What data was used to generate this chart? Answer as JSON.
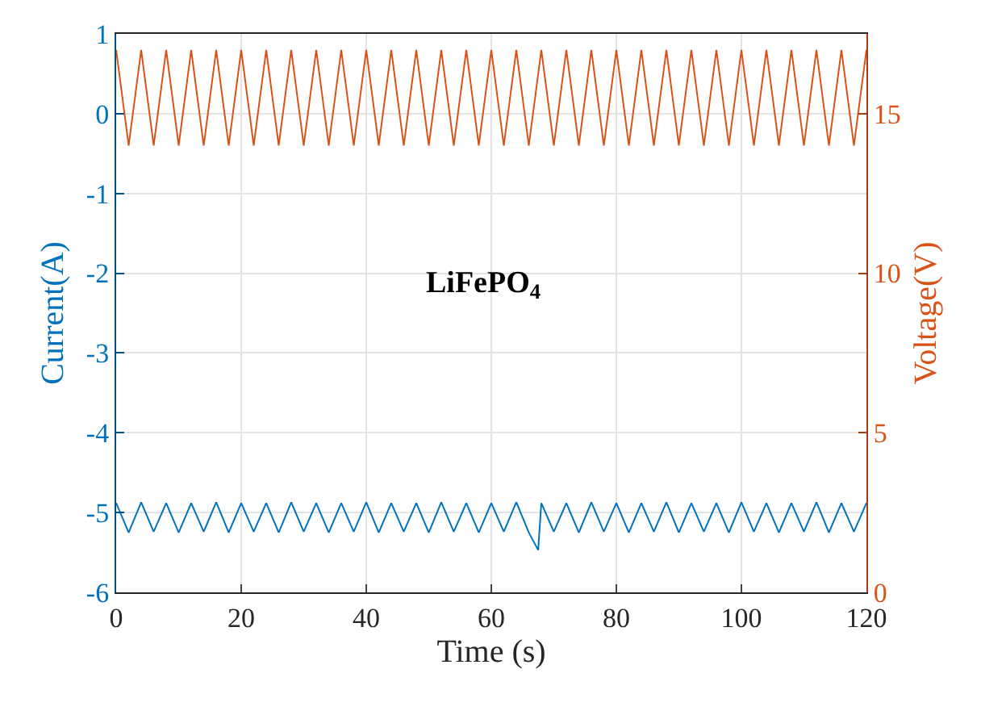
{
  "chart_data": {
    "type": "line",
    "xlabel": "Time (s)",
    "ylabel": "Current(A)",
    "y2label": "Voltage(V)",
    "annotations": [
      "LiFePO$_{4}$"
    ],
    "xlim": [
      0,
      120
    ],
    "xticks": [
      0,
      20,
      40,
      60,
      80,
      100,
      120
    ],
    "ylim": [
      -6,
      1
    ],
    "yticks": [
      -6,
      -5,
      -4,
      -3,
      -2,
      -1,
      0,
      1
    ],
    "y2lim": [
      0,
      17.5
    ],
    "y2ticks": [
      0,
      5,
      10,
      15
    ],
    "grid": true,
    "series": [
      {
        "color": "#0072bd",
        "x": [
          0,
          2,
          4,
          6,
          8,
          10,
          12,
          14,
          16,
          18,
          20,
          22,
          24,
          26,
          28,
          30,
          32,
          34,
          36,
          38,
          40,
          42,
          44,
          46,
          48,
          50,
          52,
          54,
          56,
          58,
          60,
          62,
          64,
          66,
          67.5,
          68,
          70,
          72,
          74,
          76,
          78,
          80,
          82,
          84,
          86,
          88,
          90,
          92,
          94,
          96,
          98,
          100,
          102,
          104,
          106,
          108,
          110,
          112,
          114,
          116,
          118,
          120
        ],
        "values": [
          -4.88,
          -5.25,
          -4.87,
          -5.24,
          -4.88,
          -5.25,
          -4.88,
          -5.24,
          -4.87,
          -5.25,
          -4.88,
          -5.24,
          -4.88,
          -5.25,
          -4.87,
          -5.24,
          -4.88,
          -5.25,
          -4.88,
          -5.24,
          -4.87,
          -5.25,
          -4.88,
          -5.24,
          -4.88,
          -5.25,
          -4.87,
          -5.24,
          -4.88,
          -5.25,
          -4.88,
          -5.24,
          -4.87,
          -5.25,
          -5.47,
          -4.88,
          -5.24,
          -4.88,
          -5.25,
          -4.87,
          -5.24,
          -4.88,
          -5.25,
          -4.88,
          -5.24,
          -4.87,
          -5.25,
          -4.88,
          -5.24,
          -4.88,
          -5.25,
          -4.87,
          -5.24,
          -4.88,
          -5.25,
          -4.88,
          -5.24,
          -4.87,
          -5.25,
          -4.88,
          -5.24,
          -4.88
        ]
      },
      {
        "color": "#d95319",
        "axis": "y2",
        "x": [
          0,
          2,
          4,
          6,
          8,
          10,
          12,
          14,
          16,
          18,
          20,
          22,
          24,
          26,
          28,
          30,
          32,
          34,
          36,
          38,
          40,
          42,
          44,
          46,
          48,
          50,
          52,
          54,
          56,
          58,
          60,
          62,
          64,
          66,
          68,
          70,
          72,
          74,
          76,
          78,
          80,
          82,
          84,
          86,
          88,
          90,
          92,
          94,
          96,
          98,
          100,
          102,
          104,
          106,
          108,
          110,
          112,
          114,
          116,
          118,
          120
        ],
        "values": [
          17.0,
          14.0,
          17.0,
          14.0,
          17.0,
          14.0,
          17.0,
          14.0,
          17.0,
          14.0,
          17.0,
          14.0,
          17.0,
          14.0,
          17.0,
          14.0,
          17.0,
          14.0,
          17.0,
          14.0,
          17.0,
          14.0,
          17.0,
          14.0,
          17.0,
          14.0,
          17.0,
          14.0,
          17.0,
          14.0,
          17.0,
          14.0,
          17.0,
          14.0,
          17.0,
          14.0,
          17.0,
          14.0,
          17.0,
          14.0,
          17.0,
          14.0,
          17.0,
          14.0,
          17.0,
          14.0,
          17.0,
          14.0,
          17.0,
          14.0,
          17.0,
          14.0,
          17.0,
          14.0,
          17.0,
          14.0,
          17.0,
          14.0,
          17.0,
          14.0,
          17.0
        ]
      }
    ]
  }
}
